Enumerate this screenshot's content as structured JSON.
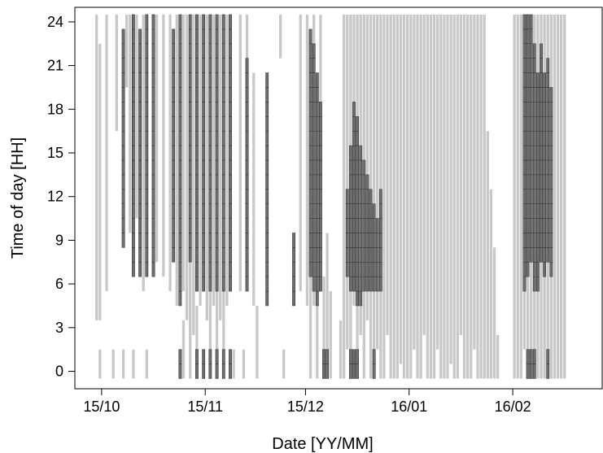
{
  "chart_data": {
    "type": "heatmap",
    "title": "",
    "xlabel": "Date [YY/MM]",
    "ylabel": "Time of day [HH]",
    "x_axis": {
      "start": "2015-09-23",
      "end": "2016-02-28",
      "ticks": [
        {
          "date": "2015-10-01",
          "label": "15/10"
        },
        {
          "date": "2015-11-01",
          "label": "15/11"
        },
        {
          "date": "2015-12-01",
          "label": "15/12"
        },
        {
          "date": "2016-01-01",
          "label": "16/01"
        },
        {
          "date": "2016-02-01",
          "label": "16/02"
        }
      ]
    },
    "y_axis": {
      "ylim": [
        -1.2,
        25
      ],
      "ticks": [
        {
          "value": 0,
          "label": "0"
        },
        {
          "value": 3,
          "label": "3"
        },
        {
          "value": 6,
          "label": "6"
        },
        {
          "value": 9,
          "label": "9"
        },
        {
          "value": 12,
          "label": "12"
        },
        {
          "value": 15,
          "label": "15"
        },
        {
          "value": 18,
          "label": "18"
        },
        {
          "value": 21,
          "label": "21"
        },
        {
          "value": 24,
          "label": "24"
        }
      ]
    },
    "grid": false,
    "colors": {
      "light_cells": "#c8c8c8",
      "dark_cells": "#6e6e6e",
      "dark_cell_border": "#2b2b2b",
      "axis": "#000000"
    },
    "series": [
      {
        "shade": "light",
        "intervals": [
          [
            "2015-09-29",
            4,
            24
          ],
          [
            "2015-09-30",
            4,
            22
          ],
          [
            "2015-09-30",
            0,
            1
          ],
          [
            "2015-10-02",
            6,
            24
          ],
          [
            "2015-10-04",
            0,
            1
          ],
          [
            "2015-10-05",
            17,
            24
          ],
          [
            "2015-10-07",
            0,
            1
          ],
          [
            "2015-10-08",
            20,
            24
          ],
          [
            "2015-10-09",
            10,
            24
          ],
          [
            "2015-10-10",
            0,
            1
          ],
          [
            "2015-10-11",
            11,
            24
          ],
          [
            "2015-10-13",
            6,
            24
          ],
          [
            "2015-10-14",
            0,
            1
          ],
          [
            "2015-10-16",
            7,
            24
          ],
          [
            "2015-10-17",
            8,
            24
          ],
          [
            "2015-10-19",
            7,
            24
          ],
          [
            "2015-10-21",
            6,
            24
          ],
          [
            "2015-10-23",
            5,
            24
          ],
          [
            "2015-10-25",
            6,
            24
          ],
          [
            "2015-10-25",
            0,
            3
          ],
          [
            "2015-10-26",
            4,
            24
          ],
          [
            "2015-10-27",
            0,
            8
          ],
          [
            "2015-10-28",
            3,
            24
          ],
          [
            "2015-10-29",
            0,
            4
          ],
          [
            "2015-10-30",
            5,
            24
          ],
          [
            "2015-11-01",
            4,
            24
          ],
          [
            "2015-11-02",
            0,
            5
          ],
          [
            "2015-11-03",
            5,
            24
          ],
          [
            "2015-11-04",
            0,
            8
          ],
          [
            "2015-11-05",
            4,
            24
          ],
          [
            "2015-11-06",
            0,
            7
          ],
          [
            "2015-11-07",
            5,
            24
          ],
          [
            "2015-11-09",
            0,
            1
          ],
          [
            "2015-11-11",
            6,
            24
          ],
          [
            "2015-11-12",
            0,
            1
          ],
          [
            "2015-11-13",
            6,
            24
          ],
          [
            "2015-11-15",
            5,
            20
          ],
          [
            "2015-11-16",
            0,
            4
          ],
          [
            "2015-11-23",
            22,
            24
          ],
          [
            "2015-11-24",
            0,
            1
          ],
          [
            "2015-11-29",
            6,
            24
          ],
          [
            "2015-12-01",
            5,
            24
          ],
          [
            "2015-12-02",
            0,
            8
          ],
          [
            "2015-12-03",
            5,
            24
          ],
          [
            "2015-12-04",
            0,
            7
          ],
          [
            "2015-12-05",
            6,
            24
          ],
          [
            "2015-12-06",
            0,
            6
          ],
          [
            "2015-12-07",
            1,
            9
          ],
          [
            "2015-12-08",
            0,
            5
          ],
          [
            "2015-12-11",
            0,
            3
          ],
          [
            "2015-12-12",
            0,
            24
          ],
          [
            "2015-12-13",
            2,
            24
          ],
          [
            "2015-12-14",
            0,
            24
          ],
          [
            "2015-12-15",
            5,
            24
          ],
          [
            "2015-12-16",
            0,
            24
          ],
          [
            "2015-12-17",
            3,
            24
          ],
          [
            "2015-12-18",
            0,
            24
          ],
          [
            "2015-12-19",
            4,
            24
          ],
          [
            "2015-12-20",
            0,
            24
          ],
          [
            "2015-12-21",
            0,
            24
          ],
          [
            "2015-12-22",
            2,
            24
          ],
          [
            "2015-12-23",
            0,
            24
          ],
          [
            "2015-12-24",
            0,
            24
          ],
          [
            "2015-12-25",
            3,
            24
          ],
          [
            "2015-12-26",
            0,
            24
          ],
          [
            "2015-12-27",
            0,
            24
          ],
          [
            "2015-12-28",
            0,
            24
          ],
          [
            "2015-12-29",
            1,
            24
          ],
          [
            "2015-12-30",
            0,
            24
          ],
          [
            "2015-12-31",
            0,
            24
          ],
          [
            "2016-01-01",
            0,
            24
          ],
          [
            "2016-01-02",
            2,
            24
          ],
          [
            "2016-01-03",
            0,
            24
          ],
          [
            "2016-01-04",
            0,
            24
          ],
          [
            "2016-01-05",
            3,
            24
          ],
          [
            "2016-01-06",
            0,
            24
          ],
          [
            "2016-01-07",
            0,
            24
          ],
          [
            "2016-01-08",
            0,
            24
          ],
          [
            "2016-01-09",
            2,
            24
          ],
          [
            "2016-01-10",
            0,
            24
          ],
          [
            "2016-01-11",
            0,
            24
          ],
          [
            "2016-01-12",
            0,
            24
          ],
          [
            "2016-01-13",
            1,
            24
          ],
          [
            "2016-01-14",
            0,
            24
          ],
          [
            "2016-01-15",
            0,
            24
          ],
          [
            "2016-01-16",
            3,
            24
          ],
          [
            "2016-01-17",
            0,
            24
          ],
          [
            "2016-01-18",
            0,
            24
          ],
          [
            "2016-01-19",
            0,
            24
          ],
          [
            "2016-01-20",
            2,
            24
          ],
          [
            "2016-01-21",
            0,
            24
          ],
          [
            "2016-01-22",
            0,
            24
          ],
          [
            "2016-01-23",
            0,
            24
          ],
          [
            "2016-01-24",
            0,
            16
          ],
          [
            "2016-01-25",
            0,
            12
          ],
          [
            "2016-01-26",
            0,
            8
          ],
          [
            "2016-01-27",
            0,
            2
          ],
          [
            "2016-02-01",
            0,
            24
          ],
          [
            "2016-02-02",
            0,
            24
          ],
          [
            "2016-02-03",
            0,
            24
          ],
          [
            "2016-02-04",
            2,
            24
          ],
          [
            "2016-02-05",
            0,
            24
          ],
          [
            "2016-02-06",
            0,
            24
          ],
          [
            "2016-02-07",
            1,
            24
          ],
          [
            "2016-02-08",
            0,
            24
          ],
          [
            "2016-02-09",
            0,
            24
          ],
          [
            "2016-02-10",
            0,
            24
          ],
          [
            "2016-02-11",
            0,
            24
          ],
          [
            "2016-02-12",
            0,
            24
          ],
          [
            "2016-02-13",
            0,
            24
          ],
          [
            "2016-02-14",
            0,
            24
          ],
          [
            "2016-02-15",
            0,
            24
          ],
          [
            "2016-02-16",
            0,
            24
          ]
        ]
      },
      {
        "shade": "dark",
        "intervals": [
          [
            "2015-10-07",
            9,
            23
          ],
          [
            "2015-10-10",
            7,
            24
          ],
          [
            "2015-10-12",
            7,
            23
          ],
          [
            "2015-10-14",
            7,
            24
          ],
          [
            "2015-10-16",
            7,
            24
          ],
          [
            "2015-10-22",
            8,
            23
          ],
          [
            "2015-10-24",
            5,
            24
          ],
          [
            "2015-10-24",
            0,
            1
          ],
          [
            "2015-10-27",
            8,
            24
          ],
          [
            "2015-10-29",
            6,
            24
          ],
          [
            "2015-10-29",
            0,
            1
          ],
          [
            "2015-10-31",
            6,
            24
          ],
          [
            "2015-10-31",
            0,
            1
          ],
          [
            "2015-11-02",
            6,
            24
          ],
          [
            "2015-11-02",
            0,
            1
          ],
          [
            "2015-11-04",
            6,
            24
          ],
          [
            "2015-11-04",
            0,
            1
          ],
          [
            "2015-11-06",
            6,
            24
          ],
          [
            "2015-11-06",
            0,
            1
          ],
          [
            "2015-11-08",
            6,
            24
          ],
          [
            "2015-11-08",
            0,
            1
          ],
          [
            "2015-11-13",
            6,
            21
          ],
          [
            "2015-11-19",
            5,
            20
          ],
          [
            "2015-11-27",
            5,
            9
          ],
          [
            "2015-12-02",
            7,
            23
          ],
          [
            "2015-12-03",
            6,
            22
          ],
          [
            "2015-12-04",
            5,
            20
          ],
          [
            "2015-12-05",
            6,
            18
          ],
          [
            "2015-12-06",
            0,
            1
          ],
          [
            "2015-12-07",
            0,
            1
          ],
          [
            "2015-12-13",
            7,
            12
          ],
          [
            "2015-12-14",
            6,
            15
          ],
          [
            "2015-12-15",
            6,
            18
          ],
          [
            "2015-12-16",
            5,
            17
          ],
          [
            "2015-12-17",
            5,
            15
          ],
          [
            "2015-12-18",
            6,
            14
          ],
          [
            "2015-12-19",
            6,
            13
          ],
          [
            "2015-12-20",
            6,
            12
          ],
          [
            "2015-12-21",
            6,
            11
          ],
          [
            "2015-12-22",
            6,
            10
          ],
          [
            "2015-12-23",
            6,
            12
          ],
          [
            "2015-12-14",
            0,
            1
          ],
          [
            "2015-12-15",
            0,
            1
          ],
          [
            "2015-12-16",
            0,
            1
          ],
          [
            "2015-12-21",
            0,
            1
          ],
          [
            "2016-02-04",
            6,
            24
          ],
          [
            "2016-02-05",
            7,
            24
          ],
          [
            "2016-02-06",
            8,
            24
          ],
          [
            "2016-02-07",
            6,
            22
          ],
          [
            "2016-02-08",
            6,
            20
          ],
          [
            "2016-02-09",
            8,
            22
          ],
          [
            "2016-02-10",
            7,
            20
          ],
          [
            "2016-02-11",
            8,
            21
          ],
          [
            "2016-02-12",
            7,
            19
          ],
          [
            "2016-02-05",
            0,
            1
          ],
          [
            "2016-02-06",
            0,
            1
          ],
          [
            "2016-02-07",
            0,
            1
          ],
          [
            "2016-02-11",
            0,
            1
          ]
        ]
      }
    ]
  }
}
